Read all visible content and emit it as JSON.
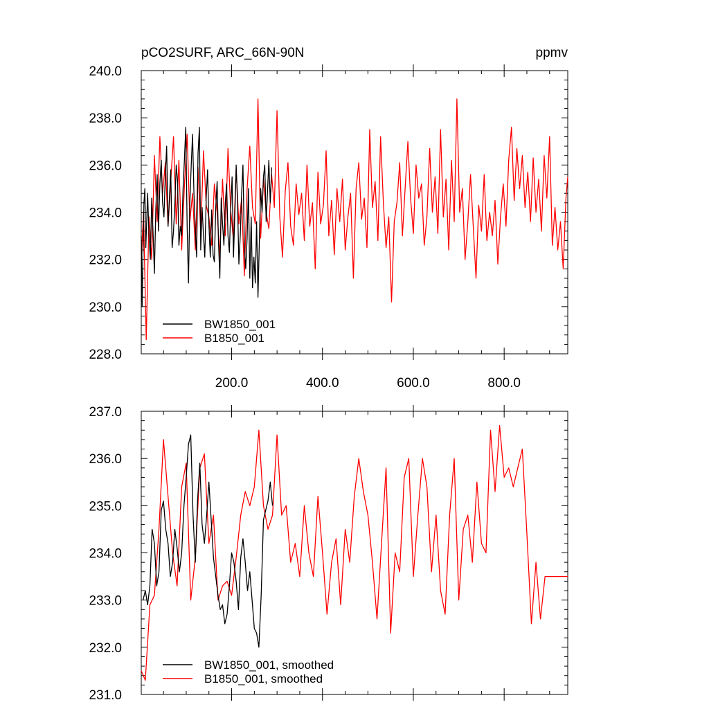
{
  "colors": {
    "series_1": "#000000",
    "series_2": "#ff0000",
    "axis": "#000000"
  },
  "chart_data": [
    {
      "type": "line",
      "title": "pCO2SURF, ARC_66N-90N",
      "units": "ppmv",
      "xlim": [
        1,
        940
      ],
      "ylim": [
        228.0,
        240.0
      ],
      "x_tick_labels": [
        "200.0",
        "400.0",
        "600.0",
        "800.0"
      ],
      "y_tick_labels": [
        "228.0",
        "230.0",
        "232.0",
        "234.0",
        "236.0",
        "238.0",
        "240.0"
      ],
      "legend": "bottom-left",
      "series": [
        {
          "name": "BW1850_001",
          "color": "#000000",
          "x": [
            1,
            3,
            5,
            7,
            9,
            11,
            13,
            15,
            18,
            21,
            24,
            27,
            30,
            33,
            36,
            39,
            42,
            45,
            48,
            51,
            54,
            57,
            60,
            63,
            66,
            69,
            72,
            75,
            78,
            81,
            84,
            87,
            90,
            93,
            96,
            99,
            102,
            105,
            108,
            111,
            114,
            117,
            120,
            123,
            126,
            129,
            132,
            135,
            138,
            141,
            144,
            147,
            150,
            153,
            156,
            159,
            162,
            165,
            168,
            171,
            174,
            177,
            180,
            183,
            186,
            189,
            192,
            195,
            198,
            201,
            204,
            207,
            210,
            213,
            216,
            219,
            222,
            225,
            228,
            231,
            234,
            237,
            240,
            243,
            246,
            249,
            252,
            255,
            258,
            261,
            264,
            267,
            270,
            273,
            276,
            279,
            282,
            285,
            288
          ],
          "values": [
            233.0,
            230.0,
            232.4,
            234.4,
            235.0,
            232.5,
            233.6,
            234.8,
            233.0,
            232.0,
            234.6,
            233.1,
            231.4,
            234.1,
            235.6,
            233.2,
            235.2,
            236.2,
            234.4,
            233.8,
            235.6,
            236.8,
            233.4,
            234.6,
            235.8,
            232.5,
            233.2,
            234.3,
            236.0,
            235.3,
            232.6,
            233.4,
            233.0,
            235.0,
            236.2,
            237.6,
            233.4,
            231.0,
            234.4,
            236.0,
            237.3,
            234.8,
            233.3,
            232.1,
            236.5,
            237.6,
            232.4,
            234.2,
            233.0,
            232.1,
            234.6,
            235.8,
            233.5,
            232.1,
            234.1,
            232.2,
            231.9,
            234.2,
            235.3,
            232.8,
            231.2,
            234.6,
            233.5,
            232.6,
            234.4,
            235.2,
            233.0,
            232.3,
            234.1,
            235.5,
            232.1,
            233.8,
            236.0,
            234.4,
            231.8,
            233.0,
            234.8,
            236.0,
            232.6,
            231.6,
            232.9,
            235.0,
            231.2,
            233.8,
            230.8,
            232.1,
            231.0,
            233.6,
            230.4,
            232.8,
            235.0,
            234.0,
            235.5,
            236.0,
            233.6,
            234.9,
            236.2,
            234.4,
            235.9
          ]
        },
        {
          "name": "B1850_001",
          "color": "#ff0000",
          "x": [
            1,
            6,
            12,
            18,
            24,
            30,
            36,
            42,
            48,
            54,
            60,
            66,
            72,
            78,
            84,
            90,
            96,
            102,
            108,
            114,
            120,
            126,
            132,
            138,
            144,
            150,
            156,
            162,
            168,
            174,
            180,
            186,
            192,
            198,
            204,
            210,
            216,
            222,
            228,
            234,
            240,
            246,
            252,
            258,
            264,
            270,
            276,
            282,
            288,
            294,
            300,
            306,
            312,
            318,
            324,
            330,
            336,
            342,
            348,
            354,
            360,
            366,
            372,
            378,
            384,
            390,
            396,
            402,
            408,
            414,
            420,
            426,
            432,
            438,
            444,
            450,
            456,
            462,
            468,
            474,
            480,
            486,
            492,
            498,
            504,
            510,
            516,
            522,
            528,
            534,
            540,
            546,
            552,
            558,
            564,
            570,
            576,
            582,
            588,
            594,
            600,
            606,
            612,
            618,
            624,
            630,
            636,
            642,
            648,
            654,
            660,
            666,
            672,
            678,
            684,
            690,
            696,
            702,
            708,
            714,
            720,
            726,
            732,
            738,
            744,
            750,
            756,
            762,
            768,
            774,
            780,
            786,
            792,
            798,
            804,
            810,
            816,
            822,
            828,
            834,
            840,
            846,
            852,
            858,
            864,
            870,
            876,
            882,
            888,
            894,
            900,
            906,
            912,
            918,
            924,
            930,
            936,
            940
          ],
          "values": [
            232.0,
            234.0,
            228.6,
            233.8,
            232.0,
            236.4,
            233.6,
            237.2,
            234.8,
            236.1,
            233.4,
            235.3,
            237.2,
            233.5,
            236.2,
            232.4,
            235.1,
            237.3,
            233.6,
            234.8,
            232.4,
            235.9,
            233.1,
            236.6,
            234.3,
            233.8,
            232.6,
            235.2,
            234.0,
            232.1,
            235.4,
            233.0,
            236.7,
            234.1,
            232.8,
            235.8,
            233.5,
            234.6,
            231.3,
            235.0,
            236.8,
            234.2,
            233.5,
            238.8,
            232.9,
            235.4,
            234.0,
            233.3,
            235.6,
            234.2,
            238.3,
            233.8,
            232.1,
            234.9,
            236.1,
            233.4,
            232.6,
            235.2,
            233.9,
            234.8,
            232.8,
            236.0,
            233.4,
            234.4,
            231.6,
            235.7,
            233.5,
            234.3,
            236.6,
            233.0,
            234.5,
            232.2,
            235.0,
            233.6,
            235.4,
            232.4,
            233.8,
            234.8,
            231.2,
            235.0,
            236.1,
            233.7,
            234.6,
            232.5,
            237.5,
            234.2,
            235.3,
            232.8,
            237.2,
            234.4,
            232.5,
            233.8,
            230.2,
            233.6,
            234.4,
            236.1,
            233.0,
            235.0,
            237.0,
            234.6,
            233.1,
            236.0,
            234.6,
            235.2,
            232.6,
            233.8,
            236.7,
            234.0,
            235.5,
            233.1,
            237.5,
            233.8,
            235.4,
            232.4,
            236.2,
            233.6,
            238.8,
            234.0,
            235.0,
            232.0,
            233.6,
            235.6,
            233.4,
            231.2,
            234.3,
            233.2,
            235.6,
            232.8,
            234.0,
            233.0,
            234.5,
            231.8,
            233.8,
            235.2,
            233.4,
            236.2,
            237.6,
            234.5,
            236.7,
            235.0,
            236.4,
            234.2,
            235.7,
            233.6,
            236.3,
            234.0,
            235.4,
            233.2,
            236.4,
            234.6,
            237.2,
            232.6,
            234.2,
            232.4,
            233.6,
            231.6,
            234.6,
            235.5
          ]
        }
      ]
    },
    {
      "type": "line",
      "title": "",
      "xlim": [
        1,
        940
      ],
      "ylim": [
        231.0,
        237.0
      ],
      "y_tick_labels": [
        "231.0",
        "232.0",
        "233.0",
        "234.0",
        "235.0",
        "236.0",
        "237.0"
      ],
      "legend": "bottom-left",
      "series": [
        {
          "name": "BW1850_001, smoothed",
          "color": "#000000",
          "x": [
            5,
            10,
            15,
            20,
            25,
            30,
            35,
            40,
            45,
            50,
            55,
            60,
            65,
            70,
            75,
            80,
            85,
            90,
            95,
            100,
            105,
            110,
            115,
            120,
            125,
            130,
            135,
            140,
            145,
            150,
            155,
            160,
            165,
            170,
            175,
            180,
            185,
            190,
            195,
            200,
            205,
            210,
            215,
            220,
            225,
            230,
            235,
            240,
            245,
            250,
            255,
            260,
            265,
            270,
            275,
            280,
            285,
            290
          ],
          "values": [
            233.0,
            233.2,
            232.9,
            233.3,
            234.5,
            234.2,
            233.3,
            233.6,
            234.9,
            235.1,
            234.5,
            234.2,
            233.5,
            233.8,
            234.5,
            234.1,
            233.6,
            234.0,
            235.0,
            235.6,
            236.3,
            236.5,
            234.8,
            233.8,
            235.1,
            235.9,
            234.6,
            234.2,
            234.8,
            235.5,
            234.7,
            233.9,
            233.5,
            233.1,
            232.8,
            232.9,
            232.5,
            232.7,
            233.3,
            234.0,
            233.8,
            233.4,
            232.8,
            233.9,
            234.3,
            233.8,
            233.2,
            233.6,
            233.0,
            232.4,
            232.3,
            232.0,
            233.1,
            234.7,
            234.9,
            235.1,
            235.5,
            235.0
          ]
        },
        {
          "name": "B1850_001, smoothed",
          "color": "#ff0000",
          "x": [
            1,
            10,
            20,
            30,
            40,
            50,
            60,
            70,
            80,
            90,
            100,
            110,
            120,
            130,
            140,
            150,
            160,
            170,
            180,
            190,
            200,
            210,
            220,
            230,
            240,
            250,
            260,
            270,
            280,
            290,
            300,
            310,
            320,
            330,
            340,
            350,
            360,
            370,
            380,
            390,
            400,
            410,
            420,
            430,
            440,
            450,
            460,
            470,
            480,
            490,
            500,
            510,
            520,
            530,
            540,
            550,
            560,
            570,
            580,
            590,
            600,
            610,
            620,
            630,
            640,
            650,
            660,
            670,
            680,
            690,
            700,
            710,
            720,
            730,
            740,
            750,
            760,
            770,
            780,
            790,
            800,
            810,
            820,
            830,
            840,
            850,
            860,
            870,
            880,
            890,
            900,
            910,
            920,
            930,
            940
          ],
          "values": [
            231.5,
            231.3,
            232.9,
            233.1,
            234.5,
            236.4,
            235.2,
            234.0,
            233.3,
            235.4,
            235.9,
            233.0,
            233.9,
            235.8,
            236.1,
            234.2,
            234.8,
            233.0,
            233.3,
            233.4,
            233.1,
            233.9,
            234.8,
            235.3,
            235.0,
            235.4,
            236.6,
            235.0,
            234.5,
            234.8,
            236.5,
            234.8,
            235.0,
            233.8,
            234.2,
            233.5,
            235.0,
            234.0,
            233.5,
            235.2,
            234.0,
            232.7,
            233.8,
            234.3,
            232.9,
            234.5,
            233.8,
            235.2,
            236.0,
            235.3,
            234.8,
            233.8,
            232.6,
            234.2,
            235.8,
            232.3,
            234.0,
            233.6,
            235.6,
            236.0,
            233.5,
            234.8,
            236.0,
            235.4,
            233.6,
            234.8,
            233.2,
            232.7,
            234.8,
            236.0,
            233.0,
            234.5,
            234.8,
            233.8,
            235.5,
            234.2,
            234.0,
            236.6,
            235.3,
            236.7,
            235.6,
            235.8,
            235.4,
            235.8,
            236.2,
            234.4,
            232.5,
            233.8,
            232.6,
            233.5,
            233.5,
            233.5,
            233.5,
            233.5,
            233.5
          ]
        }
      ]
    }
  ]
}
